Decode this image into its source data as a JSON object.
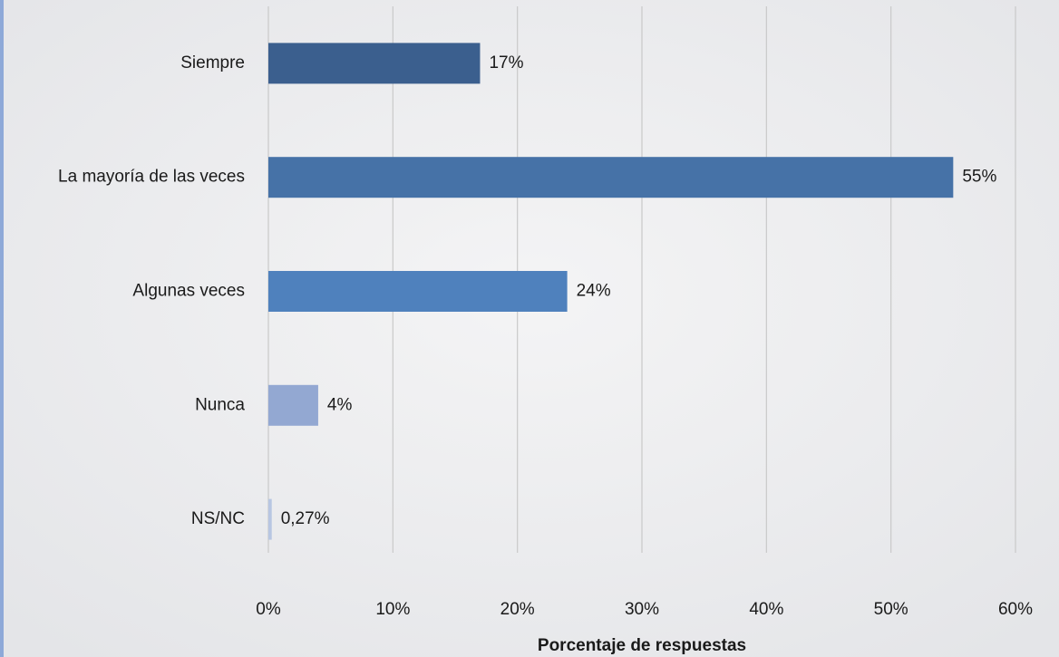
{
  "chart_data": {
    "type": "barh",
    "x_label": "Porcentaje de respuestas",
    "categories": [
      "Siempre",
      "La mayoría de las veces",
      "Algunas veces",
      "Nunca",
      "NS/NC"
    ],
    "values": [
      17,
      55,
      24,
      4,
      0.27
    ],
    "value_labels": [
      "17%",
      "55%",
      "24%",
      "4%",
      "0,27%"
    ],
    "colors": [
      "#3b5f8e",
      "#4672a7",
      "#4f81bd",
      "#93a8d2",
      "#b7c6e2"
    ],
    "xlim": [
      0,
      60
    ],
    "xticks": [
      {
        "value": 0,
        "label": "0%"
      },
      {
        "value": 10,
        "label": "10%"
      },
      {
        "value": 20,
        "label": "20%"
      },
      {
        "value": 30,
        "label": "30%"
      },
      {
        "value": 40,
        "label": "40%"
      },
      {
        "value": 50,
        "label": "50%"
      },
      {
        "value": 60,
        "label": "60%"
      }
    ],
    "grid": true
  }
}
